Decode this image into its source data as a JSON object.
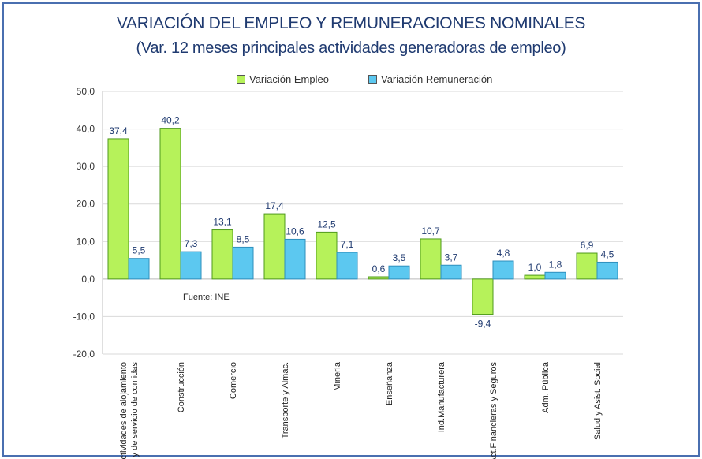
{
  "title": "VARIACIÓN DEL EMPLEO Y REMUNERACIONES NOMINALES",
  "subtitle": "(Var. 12 meses principales actividades generadoras de empleo)",
  "source": "Fuente: INE",
  "legend": [
    {
      "label": "Variación Empleo",
      "color": "#b6f25a"
    },
    {
      "label": "Variación Remuneración",
      "color": "#5cc8f0"
    }
  ],
  "chart_data": {
    "type": "bar",
    "title": "VARIACIÓN DEL EMPLEO Y REMUNERACIONES NOMINALES",
    "subtitle": "(Var. 12 meses principales actividades generadoras de empleo)",
    "categories": [
      [
        "Actividades de alojamiento",
        "y de servicio de comidas"
      ],
      [
        "Construcción"
      ],
      [
        "Comercio"
      ],
      [
        "Transporte y Almac."
      ],
      [
        "Minería"
      ],
      [
        "Enseñanza"
      ],
      [
        "Ind.Manufacturera"
      ],
      [
        "Act.Financieras y Seguros"
      ],
      [
        "Adm. Pública"
      ],
      [
        "Salud y Asist. Social"
      ]
    ],
    "series": [
      {
        "name": "Variación Empleo",
        "color": "#b6f25a",
        "values": [
          37.4,
          40.2,
          13.1,
          17.4,
          12.5,
          0.6,
          10.7,
          -9.4,
          1.0,
          6.9
        ],
        "labels": [
          "37,4",
          "40,2",
          "13,1",
          "17,4",
          "12,5",
          "0,6",
          "10,7",
          "-9,4",
          "1,0",
          "6,9"
        ]
      },
      {
        "name": "Variación Remuneración",
        "color": "#5cc8f0",
        "values": [
          5.5,
          7.3,
          8.5,
          10.6,
          7.1,
          3.5,
          3.7,
          4.8,
          1.8,
          4.5
        ],
        "labels": [
          "5,5",
          "7,3",
          "8,5",
          "10,6",
          "7,1",
          "3,5",
          "3,7",
          "4,8",
          "1,8",
          "4,5"
        ]
      }
    ],
    "ylim": [
      -20,
      50
    ],
    "yticks": [
      50,
      40,
      30,
      20,
      10,
      0,
      -10,
      -20
    ],
    "ytick_labels": [
      "50,0",
      "40,0",
      "30,0",
      "20,0",
      "10,0",
      "0,0",
      "-10,0",
      "-20,0"
    ],
    "grid": true,
    "legend_position": "top"
  }
}
